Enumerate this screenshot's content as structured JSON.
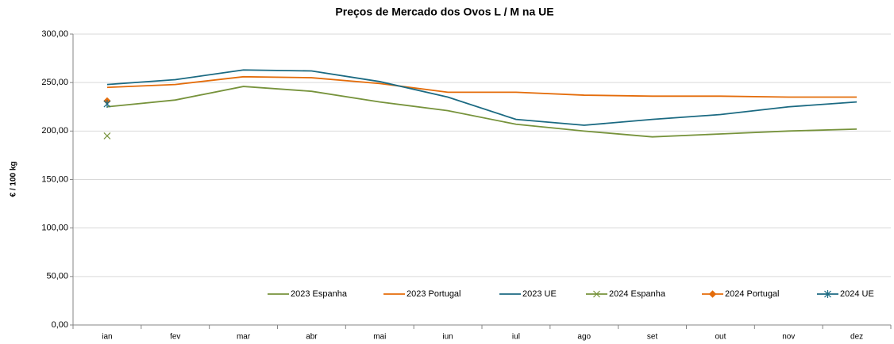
{
  "chart_data": {
    "type": "line",
    "title": "Preços de Mercado dos Ovos L / M na UE",
    "y_label": "€ / 100 kg",
    "categories": [
      "ian",
      "fev",
      "mar",
      "abr",
      "mai",
      "iun",
      "iul",
      "ago",
      "set",
      "out",
      "nov",
      "dez"
    ],
    "series": [
      {
        "name": "2023 Espanha",
        "color": "#77933c",
        "values": [
          225,
          232,
          246,
          241,
          230,
          221,
          207,
          200,
          194,
          197,
          200,
          202
        ]
      },
      {
        "name": "2023 Portugal",
        "color": "#e46c0a",
        "values": [
          245,
          248,
          256,
          255,
          249,
          240,
          240,
          237,
          236,
          236,
          235,
          235
        ]
      },
      {
        "name": "2023 UE",
        "color": "#1b6a82",
        "values": [
          248,
          253,
          263,
          262,
          251,
          235,
          212,
          206,
          212,
          217,
          225,
          230
        ]
      },
      {
        "name": "2024 Espanha",
        "color": "#77933c",
        "marker": "x",
        "values": [
          195,
          null,
          null,
          null,
          null,
          null,
          null,
          null,
          null,
          null,
          null,
          null
        ]
      },
      {
        "name": "2024 Portugal",
        "color": "#e46c0a",
        "marker": "diamond",
        "values": [
          231,
          null,
          null,
          null,
          null,
          null,
          null,
          null,
          null,
          null,
          null,
          null
        ]
      },
      {
        "name": "2024 UE",
        "color": "#1b6a82",
        "marker": "star",
        "values": [
          228,
          null,
          null,
          null,
          null,
          null,
          null,
          null,
          null,
          null,
          null,
          null
        ]
      }
    ],
    "ylim": [
      0,
      300
    ],
    "yticks": [
      {
        "value": 0,
        "label": "0,00"
      },
      {
        "value": 50,
        "label": "50,00"
      },
      {
        "value": 100,
        "label": "100,00"
      },
      {
        "value": 150,
        "label": "150,00"
      },
      {
        "value": 200,
        "label": "200,00"
      },
      {
        "value": 250,
        "label": "250,00"
      },
      {
        "value": 300,
        "label": "300,00"
      }
    ],
    "grid": true,
    "legend": "bottom-right"
  }
}
